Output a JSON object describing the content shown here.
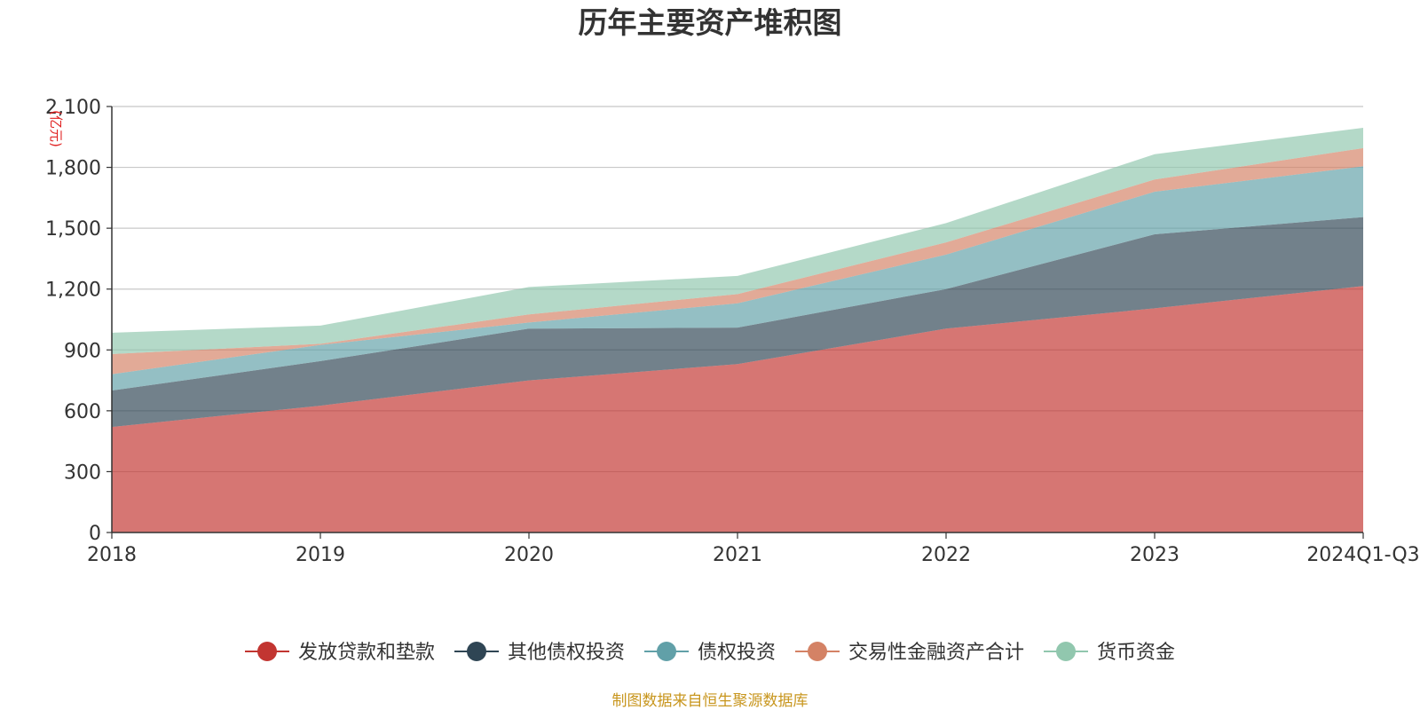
{
  "chart_data": {
    "type": "area",
    "stacked": true,
    "title": "历年主要资产堆积图",
    "y_unit": "(亿元)",
    "categories": [
      "2018",
      "2019",
      "2020",
      "2021",
      "2022",
      "2023",
      "2024Q1-Q3"
    ],
    "ylim": [
      0,
      2100
    ],
    "yticks": [
      0,
      300,
      600,
      900,
      1200,
      1500,
      1800,
      2100
    ],
    "ytick_labels": [
      "0",
      "300",
      "600",
      "900",
      "1,200",
      "1,500",
      "1,800",
      "2,100"
    ],
    "grid": true,
    "legend_position": "bottom",
    "series": [
      {
        "name": "发放贷款和垫款",
        "color": "#c23531",
        "values": [
          520,
          625,
          750,
          830,
          1005,
          1105,
          1215
        ]
      },
      {
        "name": "其他债权投资",
        "color": "#2f4554",
        "values": [
          180,
          220,
          255,
          180,
          195,
          365,
          340
        ]
      },
      {
        "name": "债权投资",
        "color": "#61a0a8",
        "values": [
          80,
          80,
          30,
          120,
          170,
          210,
          250
        ]
      },
      {
        "name": "交易性金融资产合计",
        "color": "#d48265",
        "values": [
          100,
          5,
          40,
          45,
          60,
          60,
          90
        ]
      },
      {
        "name": "货币资金",
        "color": "#91c7ae",
        "values": [
          105,
          90,
          135,
          90,
          95,
          125,
          100
        ]
      }
    ],
    "source": "制图数据来自恒生聚源数据库"
  }
}
